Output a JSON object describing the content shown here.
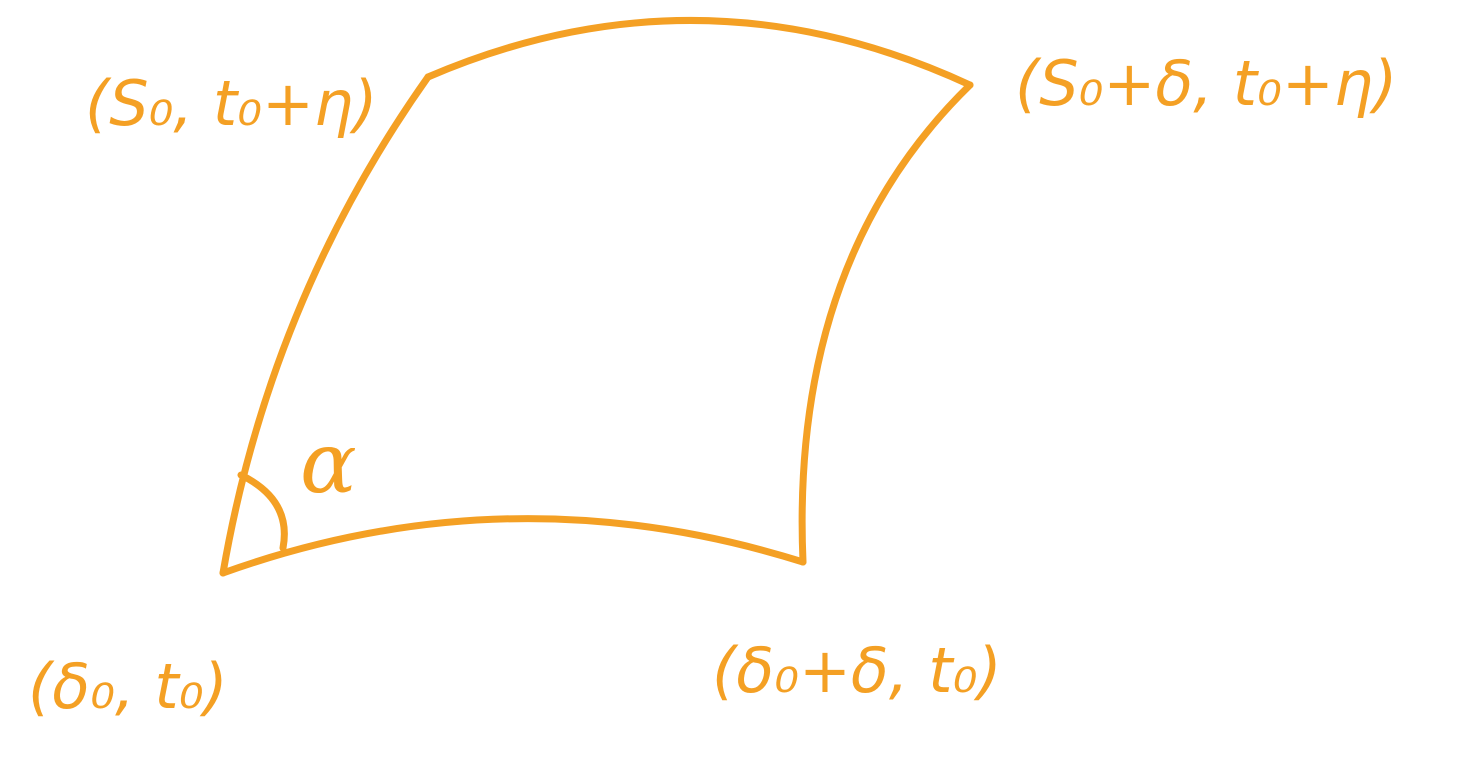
{
  "diagram": {
    "stroke_color": "#F4A024",
    "shape": "curved-quadrilateral",
    "labels": {
      "top_left": "(S₀, t₀+η)",
      "top_right": "(S₀+δ, t₀+η)",
      "bottom_left": "(δ₀, t₀)",
      "bottom_right": "(δ₀+δ, t₀)",
      "angle": "α"
    }
  }
}
